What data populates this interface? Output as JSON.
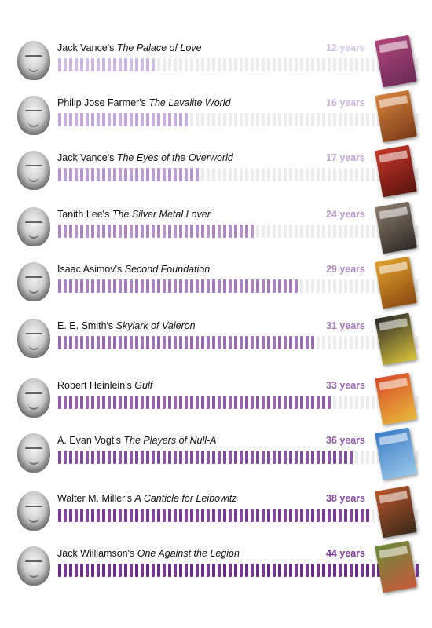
{
  "chart_data": {
    "type": "bar",
    "unit": "years",
    "max_years": 44,
    "total_segments": 66,
    "items": [
      {
        "author": "Jack Vance's",
        "title": "The Palace of Love",
        "value": 12,
        "years_label": "12 years",
        "cover_color": "#b2467a",
        "cover_color2": "#6a2a5a"
      },
      {
        "author": "Philip Jose Farmer's",
        "title": "The Lavalite World",
        "value": 16,
        "years_label": "16 years",
        "cover_color": "#d9833a",
        "cover_color2": "#7a3b1a"
      },
      {
        "author": "Jack Vance's",
        "title": "The Eyes of the Overworld",
        "value": 17,
        "years_label": "17 years",
        "cover_color": "#c8362a",
        "cover_color2": "#5a1410"
      },
      {
        "author": "Tanith Lee's",
        "title": "The Silver Metal Lover",
        "value": 24,
        "years_label": "24 years",
        "cover_color": "#8a7a6a",
        "cover_color2": "#2e2a26"
      },
      {
        "author": "Isaac Asimov's",
        "title": "Second Foundation",
        "value": 29,
        "years_label": "29 years",
        "cover_color": "#e0a02a",
        "cover_color2": "#8a4a12"
      },
      {
        "author": "E. E. Smith's",
        "title": "Skylark of Valeron",
        "value": 31,
        "years_label": "31 years",
        "cover_color": "#2a2a2a",
        "cover_color2": "#d8c23a"
      },
      {
        "author": "Robert Heinlein's",
        "title": "Gulf",
        "value": 33,
        "years_label": "33 years",
        "cover_color": "#d84a2a",
        "cover_color2": "#e8b83a"
      },
      {
        "author": "A. Evan Vogt's",
        "title": "The Players of Null-A",
        "value": 36,
        "years_label": "36 years",
        "cover_color": "#3a7ac8",
        "cover_color2": "#9ac8e8"
      },
      {
        "author": "Walter M. Miller's",
        "title": "A Canticle for Leibowitz",
        "value": 38,
        "years_label": "38 years",
        "cover_color": "#b8542a",
        "cover_color2": "#3a2a1a"
      },
      {
        "author": "Jack Williamson's",
        "title": "One Against the Legion",
        "value": 44,
        "years_label": "44 years",
        "cover_color": "#6a8a3a",
        "cover_color2": "#c85a3a"
      }
    ]
  }
}
